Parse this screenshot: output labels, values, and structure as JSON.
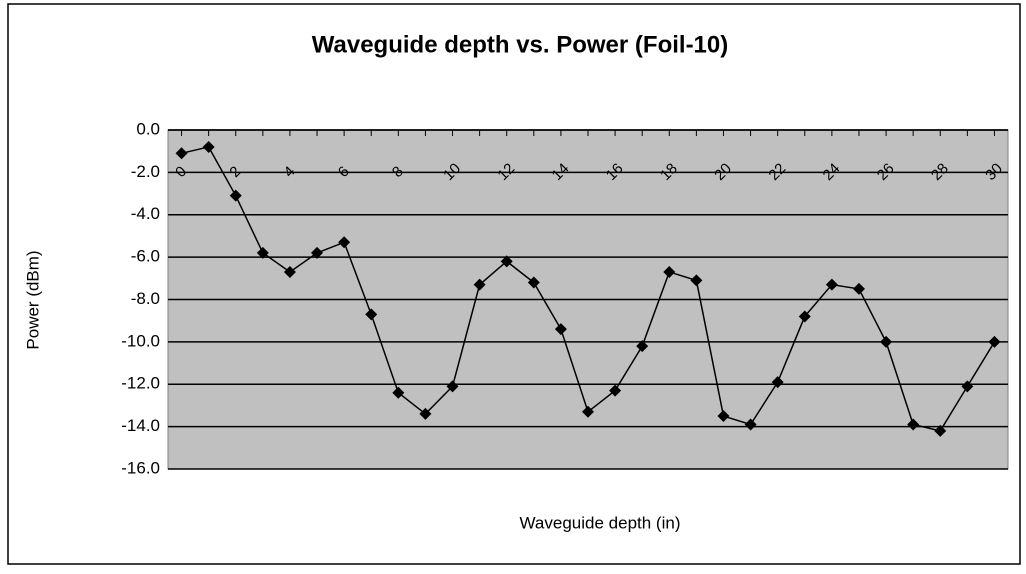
{
  "chart_data": {
    "type": "line",
    "title": "Waveguide depth vs. Power (Foil-10)",
    "x_label": "Waveguide depth (in)",
    "y_label": "Power (dBm)",
    "categories": [
      0,
      null,
      2,
      null,
      4,
      null,
      6,
      null,
      8,
      null,
      10,
      null,
      12,
      null,
      14,
      null,
      16,
      null,
      18,
      null,
      20,
      null,
      22,
      null,
      24,
      null,
      26,
      null,
      28,
      null,
      30
    ],
    "series": [
      {
        "name": "Power",
        "color": "#000000",
        "values": [
          -1.1,
          -0.8,
          -3.1,
          -5.8,
          -6.7,
          -5.8,
          -5.3,
          -8.7,
          -12.4,
          -13.4,
          -12.1,
          -7.3,
          -6.2,
          -7.2,
          -9.4,
          -13.3,
          -12.3,
          -10.2,
          -6.7,
          -7.1,
          -13.5,
          -13.9,
          -11.9,
          -8.8,
          -7.3,
          -7.5,
          -10.0,
          -13.9,
          -14.2,
          -12.1,
          -10.0
        ]
      }
    ],
    "ylim": [
      -16,
      0
    ],
    "yticks": [
      {
        "value": 0,
        "label": "0.0"
      },
      {
        "value": -2,
        "label": "-2.0"
      },
      {
        "value": -4,
        "label": "-4.0"
      },
      {
        "value": -6,
        "label": "-6.0"
      },
      {
        "value": -8,
        "label": "-8.0"
      },
      {
        "value": -10,
        "label": "-10.0"
      },
      {
        "value": -12,
        "label": "-12.0"
      },
      {
        "value": -14,
        "label": "-14.0"
      },
      {
        "value": -16,
        "label": "-16.0"
      }
    ],
    "grid": true,
    "plot_background": "#c0c0c0"
  }
}
